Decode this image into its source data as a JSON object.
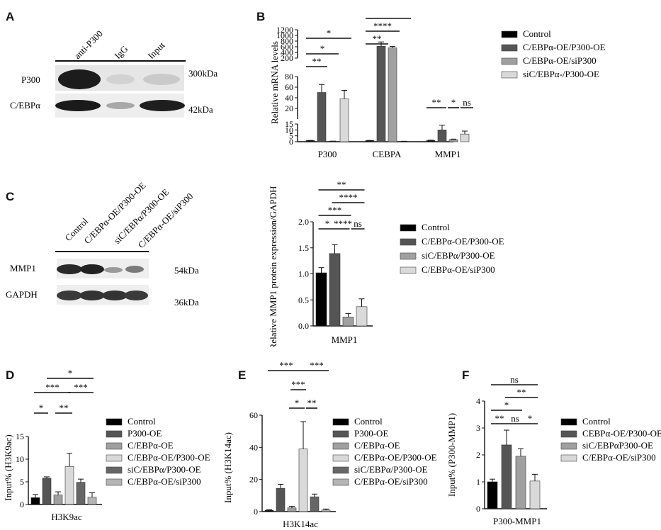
{
  "panels": {
    "A": {
      "letter": "A",
      "lanes": [
        "anti-P300",
        "IgG",
        "Input"
      ],
      "rows": [
        "P300",
        "C/EBPα"
      ],
      "sizes": [
        "300kDa",
        "42kDa"
      ]
    },
    "B": {
      "letter": "B"
    },
    "C": {
      "letter": "C",
      "lanes": [
        "Control",
        "C/EBPα-OE/P300-OE",
        "siC/EBPα/P300-OE",
        "C/EBPα-OE/siP300"
      ],
      "rows": [
        "MMP1",
        "GAPDH"
      ],
      "sizes": [
        "54kDa",
        "36kDa"
      ]
    },
    "D": {
      "letter": "D"
    },
    "E": {
      "letter": "E"
    },
    "F": {
      "letter": "F"
    }
  },
  "chart_data": [
    {
      "id": "B",
      "type": "bar",
      "ylabel": "Relative mRNA levels",
      "categories": [
        "P300",
        "CEBPA",
        "MMP1"
      ],
      "series": [
        {
          "name": "Control",
          "color": "#000000",
          "values": [
            1,
            1,
            1
          ],
          "errors": [
            0.1,
            0.1,
            0.3
          ]
        },
        {
          "name": "C/EBPα-OE/P300-OE",
          "color": "#555555",
          "values": [
            50,
            620,
            10
          ],
          "errors": [
            15,
            150,
            4
          ]
        },
        {
          "name": "C/EBPα-OE/siP300",
          "color": "#a0a0a0",
          "values": [
            0.4,
            560,
            1.8
          ],
          "errors": [
            0.1,
            50,
            0.4
          ]
        },
        {
          "name": "siC/EBPα-/P300-OE",
          "color": "#d9d9d9",
          "values": [
            38,
            0.3,
            6.5
          ],
          "errors": [
            16,
            0.1,
            2.5
          ]
        }
      ],
      "y_segments": [
        {
          "range": [
            0,
            15
          ],
          "ticks": [
            0,
            5,
            10,
            15
          ]
        },
        {
          "range": [
            0,
            80
          ],
          "ticks": [
            20,
            40,
            60,
            80
          ]
        },
        {
          "range": [
            200,
            1200
          ],
          "ticks": [
            200,
            400,
            600,
            800,
            1000,
            1200
          ]
        }
      ],
      "significance": [
        "*",
        "*",
        "**",
        "*",
        "****",
        "**",
        "**",
        "*",
        "ns"
      ]
    },
    {
      "id": "C",
      "type": "bar",
      "ylabel": "Relative MMP1 protein expression/GAPDH",
      "categories": [
        "MMP1"
      ],
      "series": [
        {
          "name": "Control",
          "color": "#000000",
          "values": [
            1.02
          ],
          "errors": [
            0.1
          ]
        },
        {
          "name": "C/EBPα-OE/P300-OE",
          "color": "#555555",
          "values": [
            1.39
          ],
          "errors": [
            0.17
          ]
        },
        {
          "name": "siC/EBPα/P300-OE",
          "color": "#a0a0a0",
          "values": [
            0.17
          ],
          "errors": [
            0.07
          ]
        },
        {
          "name": "C/EBPα-OE/siP300",
          "color": "#d9d9d9",
          "values": [
            0.37
          ],
          "errors": [
            0.15
          ]
        }
      ],
      "ylim": [
        0,
        2.0
      ],
      "yticks": [
        "0.0",
        "0.5",
        "1.0",
        "1.5",
        "2.0"
      ],
      "significance": [
        "**",
        "****",
        "***",
        "*",
        "****",
        "ns"
      ]
    },
    {
      "id": "D",
      "type": "bar",
      "xlabel": "H3K9ac",
      "ylabel": "Input% (H3K9ac)",
      "series": [
        {
          "name": "Control",
          "color": "#000000",
          "values": [
            1.5
          ],
          "errors": [
            0.7
          ]
        },
        {
          "name": "P300-OE",
          "color": "#555555",
          "values": [
            5.8
          ],
          "errors": [
            0.3
          ]
        },
        {
          "name": "C/EBPα-OE",
          "color": "#a0a0a0",
          "values": [
            2.1
          ],
          "errors": [
            0.7
          ]
        },
        {
          "name": "C/EBPα-OE/P300-OE",
          "color": "#d9d9d9",
          "values": [
            8.4
          ],
          "errors": [
            2.9
          ]
        },
        {
          "name": "siC/EBPα/P300-OE",
          "color": "#666666",
          "values": [
            4.9
          ],
          "errors": [
            0.7
          ]
        },
        {
          "name": "C/EBPα-OE/siP300",
          "color": "#b5b5b5",
          "values": [
            1.6
          ],
          "errors": [
            1.0
          ]
        }
      ],
      "ylim": [
        0,
        15
      ],
      "yticks": [
        "0",
        "5",
        "10",
        "15"
      ],
      "significance": [
        "*",
        "***",
        "***",
        "*",
        "**"
      ]
    },
    {
      "id": "E",
      "type": "bar",
      "xlabel": "H3K14ac",
      "ylabel": "Input% (H3K14ac)",
      "series": [
        {
          "name": "Control",
          "color": "#000000",
          "values": [
            0.8
          ],
          "errors": [
            0.3
          ]
        },
        {
          "name": "P300-OE",
          "color": "#555555",
          "values": [
            14.5
          ],
          "errors": [
            2.5
          ]
        },
        {
          "name": "C/EBPα-OE",
          "color": "#a0a0a0",
          "values": [
            2.3
          ],
          "errors": [
            1.0
          ]
        },
        {
          "name": "C/EBPα-OE/P300-OE",
          "color": "#d9d9d9",
          "values": [
            39
          ],
          "errors": [
            17
          ]
        },
        {
          "name": "siC/EBPα/P300-OE",
          "color": "#666666",
          "values": [
            9.2
          ],
          "errors": [
            1.7
          ]
        },
        {
          "name": "C/EBPα-OE/siP300",
          "color": "#b5b5b5",
          "values": [
            1.0
          ],
          "errors": [
            0.6
          ]
        }
      ],
      "ylim": [
        0,
        60
      ],
      "yticks": [
        "0",
        "20",
        "40",
        "60"
      ],
      "significance": [
        "***",
        "***",
        "***",
        "*",
        "**"
      ]
    },
    {
      "id": "F",
      "type": "bar",
      "xlabel": "P300-MMP1",
      "ylabel": "Input% (P300-MMP1)",
      "series": [
        {
          "name": "Control",
          "color": "#000000",
          "values": [
            1.0
          ],
          "errors": [
            0.1
          ]
        },
        {
          "name": "CEBPα-OE/P300-OE",
          "color": "#555555",
          "values": [
            2.37
          ],
          "errors": [
            0.55
          ]
        },
        {
          "name": "siC/EBPαP300-OE",
          "color": "#a0a0a0",
          "values": [
            1.95
          ],
          "errors": [
            0.28
          ]
        },
        {
          "name": "C/EBPα-OE/siP300",
          "color": "#d9d9d9",
          "values": [
            1.03
          ],
          "errors": [
            0.25
          ]
        }
      ],
      "ylim": [
        0,
        4
      ],
      "yticks": [
        "0",
        "1",
        "2",
        "3",
        "4"
      ],
      "significance": [
        "ns",
        "**",
        "*",
        "**",
        "ns",
        "*"
      ]
    }
  ]
}
